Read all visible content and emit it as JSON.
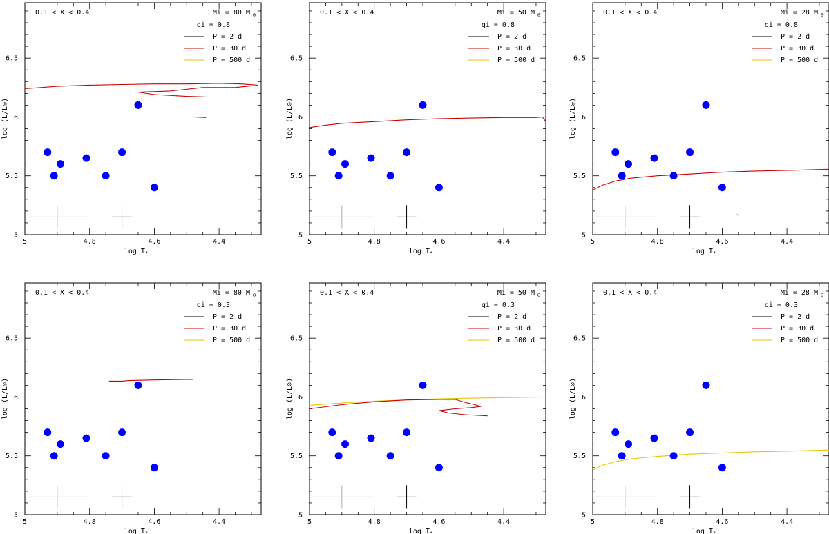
{
  "chart_data": [
    {
      "type": "line",
      "region": "0.1 < X < 0.4",
      "mass": "Mi = 80 M",
      "qi": "qi = 0.8",
      "xlabel": "log T",
      "ylabel": "log (L/L",
      "xlim": [
        5.0,
        4.27
      ],
      "ylim": [
        5.0,
        6.97
      ],
      "xticks": [
        "5",
        "4.8",
        "4.6",
        "4.4"
      ],
      "yticks": [
        "5",
        "5.5",
        "6",
        "6.5"
      ],
      "legend": [
        {
          "label": "P = 2 d",
          "color": "#000000"
        },
        {
          "label": "P = 30 d",
          "color": "#cc0000"
        },
        {
          "label": "P = 500 d",
          "color": "#e6c700"
        }
      ],
      "observed_points": [
        [
          4.93,
          5.7
        ],
        [
          4.91,
          5.5
        ],
        [
          4.89,
          5.6
        ],
        [
          4.81,
          5.65
        ],
        [
          4.75,
          5.5
        ],
        [
          4.7,
          5.7
        ],
        [
          4.65,
          6.1
        ],
        [
          4.6,
          5.4
        ]
      ],
      "error_bars": [
        {
          "x": 4.9,
          "y": 5.15,
          "dx": 0.095,
          "dy": 0.1,
          "color": "#b0b0b0"
        },
        {
          "x": 4.7,
          "y": 5.15,
          "dx": 0.03,
          "dy": 0.1,
          "color": "#000000"
        }
      ],
      "series": [
        {
          "name": "P = 30 d",
          "color": "#cc0000",
          "points": [
            [
              5.0,
              6.24
            ],
            [
              4.9,
              6.26
            ],
            [
              4.8,
              6.27
            ],
            [
              4.7,
              6.275
            ],
            [
              4.6,
              6.28
            ],
            [
              4.5,
              6.28
            ],
            [
              4.4,
              6.285
            ],
            [
              4.33,
              6.28
            ],
            [
              4.28,
              6.27
            ],
            [
              4.35,
              6.25
            ],
            [
              4.45,
              6.25
            ],
            [
              4.55,
              6.22
            ],
            [
              4.65,
              6.21
            ],
            [
              4.6,
              6.19
            ],
            [
              4.5,
              6.175
            ],
            [
              4.44,
              6.17
            ]
          ]
        },
        {
          "name": "P = 30 d",
          "color": "#cc0000",
          "points": [
            [
              4.48,
              6.0
            ],
            [
              4.44,
              5.995
            ]
          ]
        }
      ]
    },
    {
      "type": "line",
      "region": "0.1 < X < 0.4",
      "mass": "Mi = 50 M",
      "qi": "qi = 0.8",
      "xlabel": "log T",
      "ylabel": "log (L/L",
      "xlim": [
        5.0,
        4.27
      ],
      "ylim": [
        5.0,
        6.97
      ],
      "xticks": [
        "5",
        "4.8",
        "4.6",
        "4.4"
      ],
      "yticks": [
        "5",
        "5.5",
        "6",
        "6.5"
      ],
      "legend": [
        {
          "label": "P = 2 d",
          "color": "#000000"
        },
        {
          "label": "P = 30 d",
          "color": "#cc0000"
        },
        {
          "label": "P = 500 d",
          "color": "#e6c700"
        }
      ],
      "observed_points": [
        [
          4.93,
          5.7
        ],
        [
          4.91,
          5.5
        ],
        [
          4.89,
          5.6
        ],
        [
          4.81,
          5.65
        ],
        [
          4.75,
          5.5
        ],
        [
          4.7,
          5.7
        ],
        [
          4.65,
          6.1
        ],
        [
          4.6,
          5.4
        ]
      ],
      "error_bars": [
        {
          "x": 4.9,
          "y": 5.15,
          "dx": 0.095,
          "dy": 0.1,
          "color": "#b0b0b0"
        },
        {
          "x": 4.7,
          "y": 5.15,
          "dx": 0.03,
          "dy": 0.1,
          "color": "#000000"
        }
      ],
      "series": [
        {
          "name": "P = 30 d",
          "color": "#cc0000",
          "points": [
            [
              5.0,
              5.91
            ],
            [
              4.95,
              5.93
            ],
            [
              4.9,
              5.945
            ],
            [
              4.8,
              5.96
            ],
            [
              4.7,
              5.975
            ],
            [
              4.6,
              5.985
            ],
            [
              4.5,
              5.99
            ],
            [
              4.4,
              5.995
            ],
            [
              4.3,
              5.995
            ],
            [
              4.28,
              6.0
            ],
            [
              4.27,
              5.96
            ]
          ]
        }
      ]
    },
    {
      "type": "line",
      "region": "0.1 < X < 0.4",
      "mass": "Mi = 28 M",
      "qi": "qi = 0.8",
      "xlabel": "log T",
      "ylabel": "log (L/L",
      "xlim": [
        5.0,
        4.27
      ],
      "ylim": [
        5.0,
        6.97
      ],
      "xticks": [
        "5",
        "4.8",
        "4.6",
        "4.4"
      ],
      "yticks": [
        "5",
        "5.5",
        "6",
        "6.5"
      ],
      "legend": [
        {
          "label": "P = 2 d",
          "color": "#000000"
        },
        {
          "label": "P = 30 d",
          "color": "#cc0000"
        },
        {
          "label": "P = 500 d",
          "color": "#e6c700"
        }
      ],
      "observed_points": [
        [
          4.93,
          5.7
        ],
        [
          4.91,
          5.5
        ],
        [
          4.89,
          5.6
        ],
        [
          4.81,
          5.65
        ],
        [
          4.75,
          5.5
        ],
        [
          4.7,
          5.7
        ],
        [
          4.65,
          6.1
        ],
        [
          4.6,
          5.4
        ]
      ],
      "error_bars": [
        {
          "x": 4.9,
          "y": 5.15,
          "dx": 0.095,
          "dy": 0.1,
          "color": "#b0b0b0"
        },
        {
          "x": 4.7,
          "y": 5.15,
          "dx": 0.03,
          "dy": 0.1,
          "color": "#000000"
        }
      ],
      "series": [
        {
          "name": "P = 30 d",
          "color": "#cc0000",
          "points": [
            [
              5.0,
              5.38
            ],
            [
              4.97,
              5.42
            ],
            [
              4.93,
              5.455
            ],
            [
              4.88,
              5.48
            ],
            [
              4.8,
              5.5
            ],
            [
              4.7,
              5.515
            ],
            [
              4.6,
              5.53
            ],
            [
              4.5,
              5.54
            ],
            [
              4.4,
              5.545
            ],
            [
              4.27,
              5.555
            ]
          ]
        },
        {
          "name": "P = 2 d",
          "color": "#000000",
          "points": [
            [
              4.555,
              5.17
            ],
            [
              4.55,
              5.165
            ]
          ]
        }
      ]
    },
    {
      "type": "line",
      "region": "0.1 < X < 0.4",
      "mass": "Mi = 80 M",
      "qi": "qi = 0.3",
      "xlabel": "log T",
      "ylabel": "log (L/L",
      "xlim": [
        5.0,
        4.27
      ],
      "ylim": [
        5.0,
        6.97
      ],
      "xticks": [
        "5",
        "4.8",
        "4.6",
        "4.4"
      ],
      "yticks": [
        "5",
        "5.5",
        "6",
        "6.5"
      ],
      "legend": [
        {
          "label": "P = 2 d",
          "color": "#000000"
        },
        {
          "label": "P = 30 d",
          "color": "#cc0000"
        },
        {
          "label": "P = 500 d",
          "color": "#e6c700"
        }
      ],
      "observed_points": [
        [
          4.93,
          5.7
        ],
        [
          4.91,
          5.5
        ],
        [
          4.89,
          5.6
        ],
        [
          4.81,
          5.65
        ],
        [
          4.75,
          5.5
        ],
        [
          4.7,
          5.7
        ],
        [
          4.65,
          6.1
        ],
        [
          4.6,
          5.4
        ]
      ],
      "error_bars": [
        {
          "x": 4.9,
          "y": 5.15,
          "dx": 0.095,
          "dy": 0.1,
          "color": "#b0b0b0"
        },
        {
          "x": 4.7,
          "y": 5.15,
          "dx": 0.03,
          "dy": 0.1,
          "color": "#000000"
        }
      ],
      "series": [
        {
          "name": "P = 30 d",
          "color": "#cc0000",
          "points": [
            [
              4.74,
              6.135
            ],
            [
              4.7,
              6.135
            ],
            [
              4.68,
              6.14
            ],
            [
              4.6,
              6.145
            ],
            [
              4.5,
              6.15
            ],
            [
              4.48,
              6.15
            ]
          ]
        }
      ]
    },
    {
      "type": "line",
      "region": "0.1 < X < 0.4",
      "mass": "Mi = 50 M",
      "qi": "qi = 0.3",
      "xlabel": "log T",
      "ylabel": "log (L/L",
      "xlim": [
        5.0,
        4.27
      ],
      "ylim": [
        5.0,
        6.97
      ],
      "xticks": [
        "5",
        "4.8",
        "4.6",
        "4.4"
      ],
      "yticks": [
        "5",
        "5.5",
        "6",
        "6.5"
      ],
      "legend": [
        {
          "label": "P = 2 d",
          "color": "#000000"
        },
        {
          "label": "P = 30 d",
          "color": "#cc0000"
        },
        {
          "label": "P = 500 d",
          "color": "#e6c700"
        }
      ],
      "observed_points": [
        [
          4.93,
          5.7
        ],
        [
          4.91,
          5.5
        ],
        [
          4.89,
          5.6
        ],
        [
          4.81,
          5.65
        ],
        [
          4.75,
          5.5
        ],
        [
          4.7,
          5.7
        ],
        [
          4.65,
          6.1
        ],
        [
          4.6,
          5.4
        ]
      ],
      "error_bars": [
        {
          "x": 4.9,
          "y": 5.15,
          "dx": 0.095,
          "dy": 0.1,
          "color": "#b0b0b0"
        },
        {
          "x": 4.7,
          "y": 5.15,
          "dx": 0.03,
          "dy": 0.1,
          "color": "#000000"
        }
      ],
      "series": [
        {
          "name": "P = 500 d",
          "color": "#e6c700",
          "points": [
            [
              5.0,
              5.93
            ],
            [
              4.9,
              5.95
            ],
            [
              4.8,
              5.965
            ],
            [
              4.7,
              5.975
            ],
            [
              4.6,
              5.985
            ],
            [
              4.5,
              5.99
            ],
            [
              4.4,
              5.995
            ],
            [
              4.27,
              6.0
            ]
          ]
        },
        {
          "name": "P = 30 d",
          "color": "#cc0000",
          "points": [
            [
              5.0,
              5.9
            ],
            [
              4.9,
              5.935
            ],
            [
              4.8,
              5.96
            ],
            [
              4.7,
              5.975
            ],
            [
              4.6,
              5.98
            ],
            [
              4.55,
              5.98
            ],
            [
              4.52,
              5.955
            ],
            [
              4.49,
              5.935
            ],
            [
              4.47,
              5.92
            ],
            [
              4.5,
              5.91
            ],
            [
              4.55,
              5.9
            ],
            [
              4.6,
              5.885
            ],
            [
              4.57,
              5.865
            ],
            [
              4.52,
              5.85
            ],
            [
              4.45,
              5.84
            ]
          ]
        }
      ]
    },
    {
      "type": "line",
      "region": "0.1 < X < 0.4",
      "mass": "Mi = 28 M",
      "qi": "qi = 0.3",
      "xlabel": "log T",
      "ylabel": "log (L/L",
      "xlim": [
        5.0,
        4.27
      ],
      "ylim": [
        5.0,
        6.97
      ],
      "xticks": [
        "5",
        "4.8",
        "4.6",
        "4.4"
      ],
      "yticks": [
        "5",
        "5.5",
        "6",
        "6.5"
      ],
      "legend": [
        {
          "label": "P = 2 d",
          "color": "#000000"
        },
        {
          "label": "P = 30 d",
          "color": "#cc0000"
        },
        {
          "label": "P = 500 d",
          "color": "#e6c700"
        }
      ],
      "observed_points": [
        [
          4.93,
          5.7
        ],
        [
          4.91,
          5.5
        ],
        [
          4.89,
          5.6
        ],
        [
          4.81,
          5.65
        ],
        [
          4.75,
          5.5
        ],
        [
          4.7,
          5.7
        ],
        [
          4.65,
          6.1
        ],
        [
          4.6,
          5.4
        ]
      ],
      "error_bars": [
        {
          "x": 4.9,
          "y": 5.15,
          "dx": 0.095,
          "dy": 0.1,
          "color": "#b0b0b0"
        },
        {
          "x": 4.7,
          "y": 5.15,
          "dx": 0.03,
          "dy": 0.1,
          "color": "#000000"
        }
      ],
      "series": [
        {
          "name": "P = 500 d",
          "color": "#e6c700",
          "points": [
            [
              5.0,
              5.38
            ],
            [
              4.97,
              5.42
            ],
            [
              4.93,
              5.45
            ],
            [
              4.88,
              5.475
            ],
            [
              4.8,
              5.495
            ],
            [
              4.7,
              5.515
            ],
            [
              4.6,
              5.525
            ],
            [
              4.5,
              5.535
            ],
            [
              4.4,
              5.54
            ],
            [
              4.27,
              5.55
            ]
          ]
        }
      ]
    }
  ],
  "colors": {
    "points": "#0000ff",
    "axis": "#000000"
  }
}
